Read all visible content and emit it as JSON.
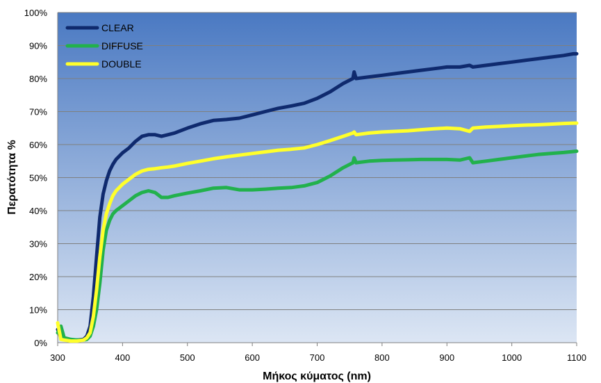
{
  "chart_data": {
    "type": "line",
    "title": "",
    "xlabel": "Μήκος κύματος (nm)",
    "ylabel": "Περατότητα %",
    "xlim": [
      300,
      1100
    ],
    "ylim": [
      0,
      100
    ],
    "grid": true,
    "legend_position": "top-left",
    "x_ticks": [
      300,
      400,
      500,
      600,
      700,
      800,
      900,
      1000,
      1100
    ],
    "x_tick_labels": [
      "300",
      "400",
      "500",
      "600",
      "700",
      "800",
      "900",
      "1000",
      "1100"
    ],
    "y_ticks": [
      0,
      10,
      20,
      30,
      40,
      50,
      60,
      70,
      80,
      90,
      100
    ],
    "y_tick_labels": [
      "0%",
      "10%",
      "20%",
      "30%",
      "40%",
      "50%",
      "60%",
      "70%",
      "80%",
      "90%",
      "100%"
    ],
    "background_gradient": [
      "#4a79c2",
      "#dce6f4"
    ],
    "series": [
      {
        "name": "CLEAR",
        "color": "#0f2a6e",
        "x": [
          300,
          305,
          310,
          320,
          330,
          340,
          345,
          350,
          355,
          360,
          365,
          370,
          375,
          380,
          385,
          390,
          395,
          400,
          410,
          420,
          430,
          440,
          450,
          460,
          470,
          480,
          500,
          520,
          540,
          560,
          580,
          600,
          620,
          640,
          660,
          680,
          700,
          720,
          740,
          755,
          757,
          760,
          780,
          800,
          820,
          840,
          860,
          880,
          900,
          920,
          935,
          940,
          960,
          980,
          1000,
          1020,
          1040,
          1060,
          1080,
          1095,
          1100
        ],
        "y": [
          4,
          1.5,
          1,
          0.8,
          0.8,
          1,
          2,
          5,
          14,
          26,
          38,
          45,
          49,
          52,
          54,
          55.5,
          56.5,
          57.5,
          59,
          61,
          62.5,
          63,
          63,
          62.5,
          63,
          63.5,
          65,
          66.3,
          67.3,
          67.6,
          68,
          69,
          70,
          71,
          71.7,
          72.5,
          74,
          76,
          78.5,
          80,
          82,
          80,
          80.5,
          81,
          81.5,
          82,
          82.5,
          83,
          83.5,
          83.5,
          84,
          83.5,
          84,
          84.5,
          85,
          85.5,
          86,
          86.5,
          87,
          87.5,
          87.5
        ]
      },
      {
        "name": "DIFFUSE",
        "color": "#22b14c",
        "x": [
          300,
          305,
          310,
          320,
          330,
          340,
          345,
          350,
          355,
          360,
          365,
          370,
          375,
          380,
          385,
          390,
          400,
          410,
          420,
          430,
          440,
          450,
          460,
          470,
          480,
          500,
          520,
          540,
          560,
          580,
          600,
          620,
          640,
          660,
          680,
          700,
          720,
          740,
          755,
          757,
          760,
          780,
          800,
          820,
          840,
          860,
          880,
          900,
          920,
          935,
          940,
          960,
          980,
          1000,
          1020,
          1040,
          1060,
          1080,
          1100
        ],
        "y": [
          3,
          5,
          1.5,
          1,
          0.8,
          0.8,
          1,
          2,
          5,
          10,
          18,
          28,
          34,
          37,
          39,
          40,
          41.5,
          43,
          44.5,
          45.5,
          46,
          45.5,
          44,
          44,
          44.5,
          45.3,
          46,
          46.8,
          47,
          46.3,
          46.3,
          46.5,
          46.8,
          47,
          47.5,
          48.5,
          50.5,
          53,
          54.5,
          56,
          54.5,
          55,
          55.2,
          55.3,
          55.4,
          55.5,
          55.5,
          55.5,
          55.3,
          56,
          54.5,
          55,
          55.5,
          56,
          56.5,
          57,
          57.3,
          57.6,
          58
        ]
      },
      {
        "name": "DOUBLE",
        "color": "#ffff2b",
        "x": [
          300,
          303,
          305,
          310,
          320,
          330,
          340,
          345,
          350,
          355,
          360,
          365,
          370,
          375,
          380,
          385,
          390,
          400,
          410,
          420,
          430,
          440,
          450,
          460,
          470,
          480,
          500,
          520,
          540,
          560,
          580,
          600,
          620,
          640,
          660,
          680,
          700,
          720,
          740,
          755,
          757,
          760,
          780,
          800,
          820,
          840,
          860,
          880,
          900,
          920,
          935,
          940,
          960,
          980,
          1000,
          1020,
          1040,
          1060,
          1080,
          1095,
          1100
        ],
        "y": [
          6,
          3,
          1,
          0.8,
          0.5,
          0.5,
          0.8,
          1.5,
          3,
          8,
          16,
          26,
          34,
          39,
          42,
          44.5,
          46,
          48,
          49.5,
          51,
          52,
          52.5,
          52.7,
          53,
          53.2,
          53.5,
          54.3,
          55,
          55.7,
          56.3,
          56.8,
          57.3,
          57.8,
          58.3,
          58.6,
          59,
          60,
          61.2,
          62.5,
          63.5,
          63.8,
          63,
          63.5,
          63.8,
          64,
          64.2,
          64.5,
          64.8,
          65,
          64.8,
          64,
          65,
          65.3,
          65.5,
          65.7,
          65.9,
          66,
          66.2,
          66.4,
          66.5,
          66.5
        ]
      }
    ]
  }
}
